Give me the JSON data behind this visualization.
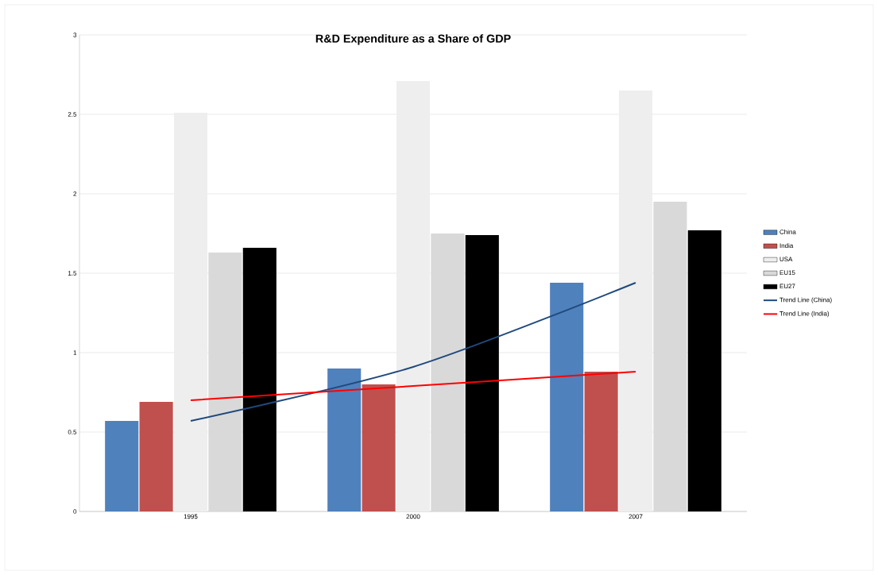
{
  "chart_data": {
    "type": "bar",
    "title": "R&D Expenditure as a Share of GDP",
    "categories": [
      "1995",
      "2000",
      "2007"
    ],
    "series": [
      {
        "name": "China",
        "color": "#4f81bd",
        "values": [
          0.57,
          0.9,
          1.44
        ]
      },
      {
        "name": "India",
        "color": "#c0504d",
        "values": [
          0.69,
          0.8,
          0.88
        ]
      },
      {
        "name": "USA",
        "color": "#eeeeee",
        "values": [
          2.51,
          2.71,
          2.65
        ]
      },
      {
        "name": "EU15",
        "color": "#d9d9d9",
        "values": [
          1.63,
          1.75,
          1.95
        ]
      },
      {
        "name": "EU27",
        "color": "#000000",
        "values": [
          1.66,
          1.74,
          1.77
        ]
      },
      {
        "name": "Trend Line (China)",
        "type": "line",
        "color": "#1f497d",
        "values": [
          0.57,
          0.91,
          1.44
        ]
      },
      {
        "name": "Trend Line (India)",
        "type": "line",
        "color": "#ff0000",
        "values": [
          0.7,
          0.79,
          0.88
        ]
      }
    ],
    "ylim": [
      0,
      3
    ],
    "yticks": [
      0,
      0.5,
      1,
      1.5,
      2,
      2.5,
      3
    ],
    "grid": "y",
    "legend": "right"
  }
}
